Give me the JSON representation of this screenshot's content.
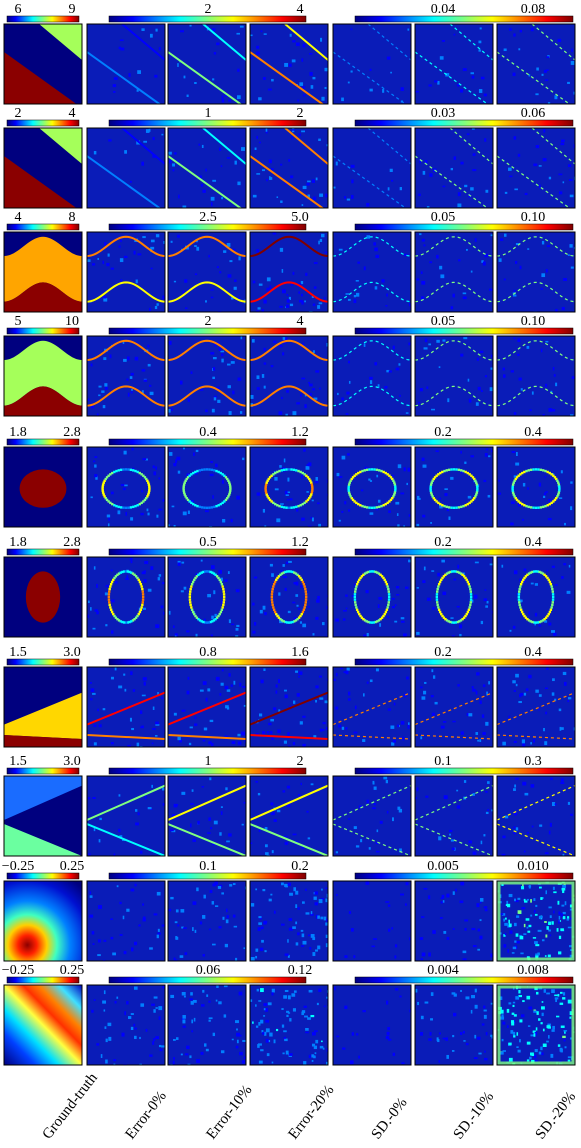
{
  "colors": {
    "background": "#ffffff",
    "jet": [
      "#00007f",
      "#0000ff",
      "#007fff",
      "#00ffff",
      "#7fff7f",
      "#ffff00",
      "#ff7f00",
      "#ff0000",
      "#7f0000"
    ],
    "field_background": "#0a1cb8",
    "image_border": "#000000",
    "separator": "#ffffff"
  },
  "column_labels": [
    "Ground-truth",
    "Error-0%",
    "Error-10%",
    "Error-20%",
    "SD.-0%",
    "SD.-10%",
    "SD.-20%"
  ],
  "rows": [
    {
      "gt_ticks": [
        "6",
        "9"
      ],
      "err_ticks": [
        "2",
        "4"
      ],
      "sd_ticks": [
        "0.04",
        "0.08"
      ],
      "gt_pattern": "diagonal-band",
      "gt_colors": [
        "#8b0000",
        "#00007f",
        "#a5ff5a"
      ],
      "err_levels": [
        0.15,
        0.35,
        0.6
      ],
      "sd_levels": [
        0.1,
        0.3,
        0.4
      ]
    },
    {
      "gt_ticks": [
        "2",
        "4"
      ],
      "err_ticks": [
        "1",
        "2"
      ],
      "sd_ticks": [
        "0.03",
        "0.06"
      ],
      "gt_pattern": "diagonal-band",
      "gt_colors": [
        "#8b0000",
        "#00007f",
        "#a5ff5a"
      ],
      "err_levels": [
        0.1,
        0.4,
        0.7
      ],
      "sd_levels": [
        0.1,
        0.35,
        0.4
      ]
    },
    {
      "gt_ticks": [
        "4",
        "8"
      ],
      "err_ticks": [
        "2.5",
        "5.0"
      ],
      "sd_ticks": [
        "0.05",
        "0.10"
      ],
      "gt_pattern": "sine-band",
      "gt_colors": [
        "#8b0000",
        "#00007f",
        "#ffa500"
      ],
      "err_levels": [
        0.6,
        0.6,
        0.9
      ],
      "sd_levels": [
        0.3,
        0.4,
        0.4
      ]
    },
    {
      "gt_ticks": [
        "5",
        "10"
      ],
      "err_ticks": [
        "2",
        "4"
      ],
      "sd_ticks": [
        "0.05",
        "0.10"
      ],
      "gt_pattern": "sine-band",
      "gt_colors": [
        "#8b0000",
        "#00007f",
        "#a5ff5a"
      ],
      "err_levels": [
        0.7,
        0.7,
        0.7
      ],
      "sd_levels": [
        0.3,
        0.4,
        0.4
      ]
    },
    {
      "gt_ticks": [
        "1.8",
        "2.8"
      ],
      "err_ticks": [
        "0.4",
        "1.2"
      ],
      "sd_ticks": [
        "0.2",
        "0.4"
      ],
      "gt_pattern": "ellipse-wide",
      "gt_colors": [
        "#8b0000",
        "#00007f",
        "#8b0000"
      ],
      "err_levels": [
        0.6,
        0.5,
        0.7
      ],
      "sd_levels": [
        0.5,
        0.5,
        0.5
      ]
    },
    {
      "gt_ticks": [
        "1.8",
        "2.8"
      ],
      "err_ticks": [
        "0.5",
        "1.2"
      ],
      "sd_ticks": [
        "0.2",
        "0.4"
      ],
      "gt_pattern": "ellipse-tall",
      "gt_colors": [
        "#8b0000",
        "#00007f",
        "#8b0000"
      ],
      "err_levels": [
        0.7,
        0.6,
        0.8
      ],
      "sd_levels": [
        0.5,
        0.5,
        0.5
      ]
    },
    {
      "gt_ticks": [
        "1.5",
        "3.0"
      ],
      "err_ticks": [
        "0.8",
        "1.6"
      ],
      "sd_ticks": [
        "0.2",
        "0.4"
      ],
      "gt_pattern": "wedge",
      "gt_colors": [
        "#ffd700",
        "#00007f",
        "#8b0000"
      ],
      "err_levels": [
        0.8,
        0.8,
        0.9
      ],
      "sd_levels": [
        0.6,
        0.6,
        0.7
      ]
    },
    {
      "gt_ticks": [
        "1.5",
        "3.0"
      ],
      "err_ticks": [
        "1",
        "2"
      ],
      "sd_ticks": [
        "0.1",
        "0.3"
      ],
      "gt_pattern": "wedge-open",
      "gt_colors": [
        "#1a6cff",
        "#00007f",
        "#6bffa0"
      ],
      "err_levels": [
        0.4,
        0.5,
        0.5
      ],
      "sd_levels": [
        0.4,
        0.4,
        0.5
      ]
    },
    {
      "gt_ticks": [
        "−0.25",
        "0.25"
      ],
      "err_ticks": [
        "0.1",
        "0.2"
      ],
      "sd_ticks": [
        "0.005",
        "0.010"
      ],
      "gt_pattern": "smooth-corner",
      "gt_colors": [
        "#8b0000",
        "#00ffff",
        "#0000ff"
      ],
      "err_levels": [
        0.1,
        0.15,
        0.3
      ],
      "sd_levels": [
        0.0,
        0.1,
        0.6
      ]
    },
    {
      "gt_ticks": [
        "−0.25",
        "0.25"
      ],
      "err_ticks": [
        "0.06",
        "0.12"
      ],
      "sd_ticks": [
        "0.004",
        "0.008"
      ],
      "gt_pattern": "smooth-diagonal",
      "gt_colors": [
        "#8b0000",
        "#00ffff",
        "#0000ff"
      ],
      "err_levels": [
        0.15,
        0.2,
        0.35
      ],
      "sd_levels": [
        0.0,
        0.15,
        0.6
      ]
    }
  ]
}
